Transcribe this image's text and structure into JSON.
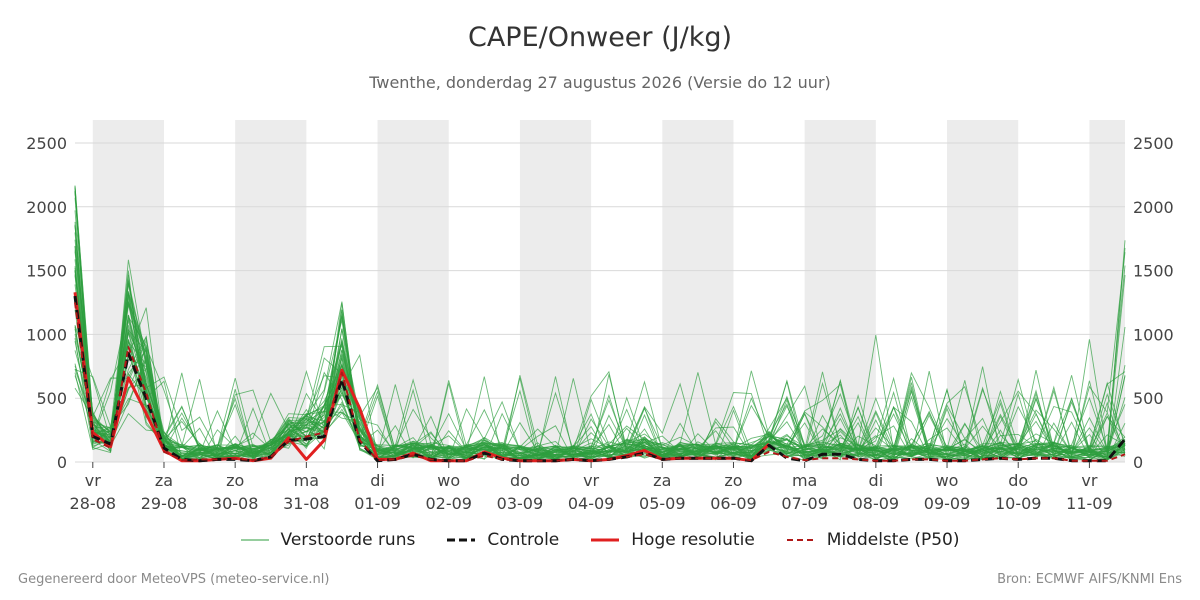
{
  "header": {
    "title": "CAPE/Onweer (J/kg)",
    "subtitle": "Twenthe, donderdag 27 augustus 2026 (Versie do 12 uur)"
  },
  "footer": {
    "left": "Gegenereerd door MeteoVPS (meteo-service.nl)",
    "right": "Bron: ECMWF AIFS/KNMI Ens"
  },
  "legend": [
    {
      "label": "Verstoorde runs",
      "style": "thin-green"
    },
    {
      "label": "Controle",
      "style": "black-dashed"
    },
    {
      "label": "Hoge resolutie",
      "style": "red-solid"
    },
    {
      "label": "Middelste (P50)",
      "style": "darkred-dashed"
    }
  ],
  "colors": {
    "ensemble": "#2e9e3e",
    "control": "#111111",
    "hires": "#e02020",
    "median": "#b01818",
    "weekend_band": "#ececec",
    "grid": "#d9d9d9"
  },
  "chart_data": {
    "type": "line",
    "title": "CAPE/Onweer (J/kg)",
    "subtitle": "Twenthe, donderdag 27 augustus 2026 (Versie do 12 uur)",
    "x_unit": "days since 28-08 00:00",
    "xlim": [
      -0.25,
      14.5
    ],
    "ylim": [
      0,
      2680
    ],
    "y_ticks": [
      0,
      500,
      1000,
      1500,
      2000,
      2500
    ],
    "y_axis_both_sides": true,
    "x_ticks": [
      {
        "day": "vr",
        "date": "28-08"
      },
      {
        "day": "za",
        "date": "29-08"
      },
      {
        "day": "zo",
        "date": "30-08"
      },
      {
        "day": "ma",
        "date": "31-08"
      },
      {
        "day": "di",
        "date": "01-09"
      },
      {
        "day": "wo",
        "date": "02-09"
      },
      {
        "day": "do",
        "date": "03-09"
      },
      {
        "day": "vr",
        "date": "04-09"
      },
      {
        "day": "za",
        "date": "05-09"
      },
      {
        "day": "zo",
        "date": "06-09"
      },
      {
        "day": "ma",
        "date": "07-09"
      },
      {
        "day": "di",
        "date": "08-09"
      },
      {
        "day": "wo",
        "date": "09-09"
      },
      {
        "day": "do",
        "date": "10-09"
      },
      {
        "day": "vr",
        "date": "11-09"
      }
    ],
    "shaded_bands": [
      [
        0,
        1
      ],
      [
        2,
        3
      ],
      [
        4,
        5
      ],
      [
        6,
        7
      ],
      [
        8,
        9
      ],
      [
        10,
        11
      ],
      [
        12,
        13
      ],
      [
        14,
        14.5
      ]
    ],
    "grid": true,
    "legend_position": "bottom",
    "ensemble_member_count": 50,
    "series": [
      {
        "name": "Hoge resolutie",
        "x": [
          -0.25,
          0,
          0.25,
          0.5,
          0.75,
          1,
          1.25,
          1.5,
          1.75,
          2,
          2.25,
          2.5,
          2.75,
          3,
          3.25,
          3.5,
          3.75,
          4,
          4.25,
          4.5,
          4.75,
          5,
          5.25,
          5.5,
          5.75,
          6,
          6.25,
          6.5,
          6.75,
          7,
          7.25,
          7.5,
          7.75,
          8,
          8.25,
          8.5,
          8.75,
          9,
          9.25,
          9.5
        ],
        "values": [
          1330,
          230,
          120,
          660,
          380,
          90,
          10,
          10,
          20,
          30,
          10,
          30,
          190,
          20,
          170,
          720,
          420,
          20,
          20,
          70,
          10,
          10,
          10,
          80,
          30,
          10,
          10,
          10,
          20,
          10,
          20,
          50,
          90,
          20,
          30,
          30,
          30,
          30,
          10,
          140
        ]
      },
      {
        "name": "Controle",
        "x": [
          -0.25,
          0,
          0.25,
          0.5,
          0.75,
          1,
          1.25,
          1.5,
          1.75,
          2,
          2.25,
          2.5,
          2.75,
          3,
          3.25,
          3.5,
          3.75,
          4,
          4.25,
          4.5,
          4.75,
          5,
          5.25,
          5.5,
          5.75,
          6,
          6.25,
          6.5,
          6.75,
          7,
          7.25,
          7.5,
          7.75,
          8,
          8.25,
          8.5,
          8.75,
          9,
          9.25,
          9.5,
          9.75,
          10,
          10.25,
          10.5,
          10.75,
          11,
          11.25,
          11.5,
          11.75,
          12,
          12.25,
          12.5,
          12.75,
          13,
          13.25,
          13.5,
          13.75,
          14,
          14.25,
          14.5
        ],
        "values": [
          1300,
          200,
          140,
          850,
          500,
          110,
          20,
          10,
          20,
          20,
          10,
          40,
          170,
          180,
          200,
          650,
          160,
          10,
          20,
          60,
          20,
          10,
          10,
          70,
          20,
          10,
          10,
          10,
          20,
          10,
          20,
          40,
          70,
          20,
          30,
          30,
          30,
          30,
          10,
          130,
          30,
          10,
          60,
          60,
          20,
          10,
          10,
          20,
          20,
          10,
          10,
          20,
          30,
          20,
          30,
          30,
          10,
          10,
          10,
          180
        ]
      },
      {
        "name": "Middelste (P50)",
        "x": [
          -0.25,
          0,
          0.25,
          0.5,
          0.75,
          1,
          1.25,
          1.5,
          1.75,
          2,
          2.25,
          2.5,
          2.75,
          3,
          3.25,
          3.5,
          3.75,
          4,
          4.25,
          4.5,
          4.75,
          5,
          5.25,
          5.5,
          5.75,
          6,
          6.25,
          6.5,
          6.75,
          7,
          7.25,
          7.5,
          7.75,
          8,
          8.25,
          8.5,
          8.75,
          9,
          9.25,
          9.5,
          9.75,
          10,
          10.25,
          10.5,
          10.75,
          11,
          11.25,
          11.5,
          11.75,
          12,
          12.25,
          12.5,
          12.75,
          13,
          13.25,
          13.5,
          13.75,
          14,
          14.25,
          14.5
        ],
        "values": [
          1250,
          180,
          110,
          900,
          540,
          80,
          15,
          20,
          20,
          25,
          15,
          40,
          160,
          200,
          230,
          700,
          170,
          15,
          20,
          50,
          20,
          10,
          10,
          50,
          20,
          10,
          10,
          10,
          20,
          10,
          20,
          40,
          60,
          20,
          30,
          30,
          30,
          30,
          15,
          80,
          40,
          15,
          30,
          30,
          20,
          10,
          10,
          20,
          20,
          10,
          10,
          20,
          30,
          20,
          30,
          30,
          10,
          10,
          10,
          60
        ]
      }
    ]
  }
}
